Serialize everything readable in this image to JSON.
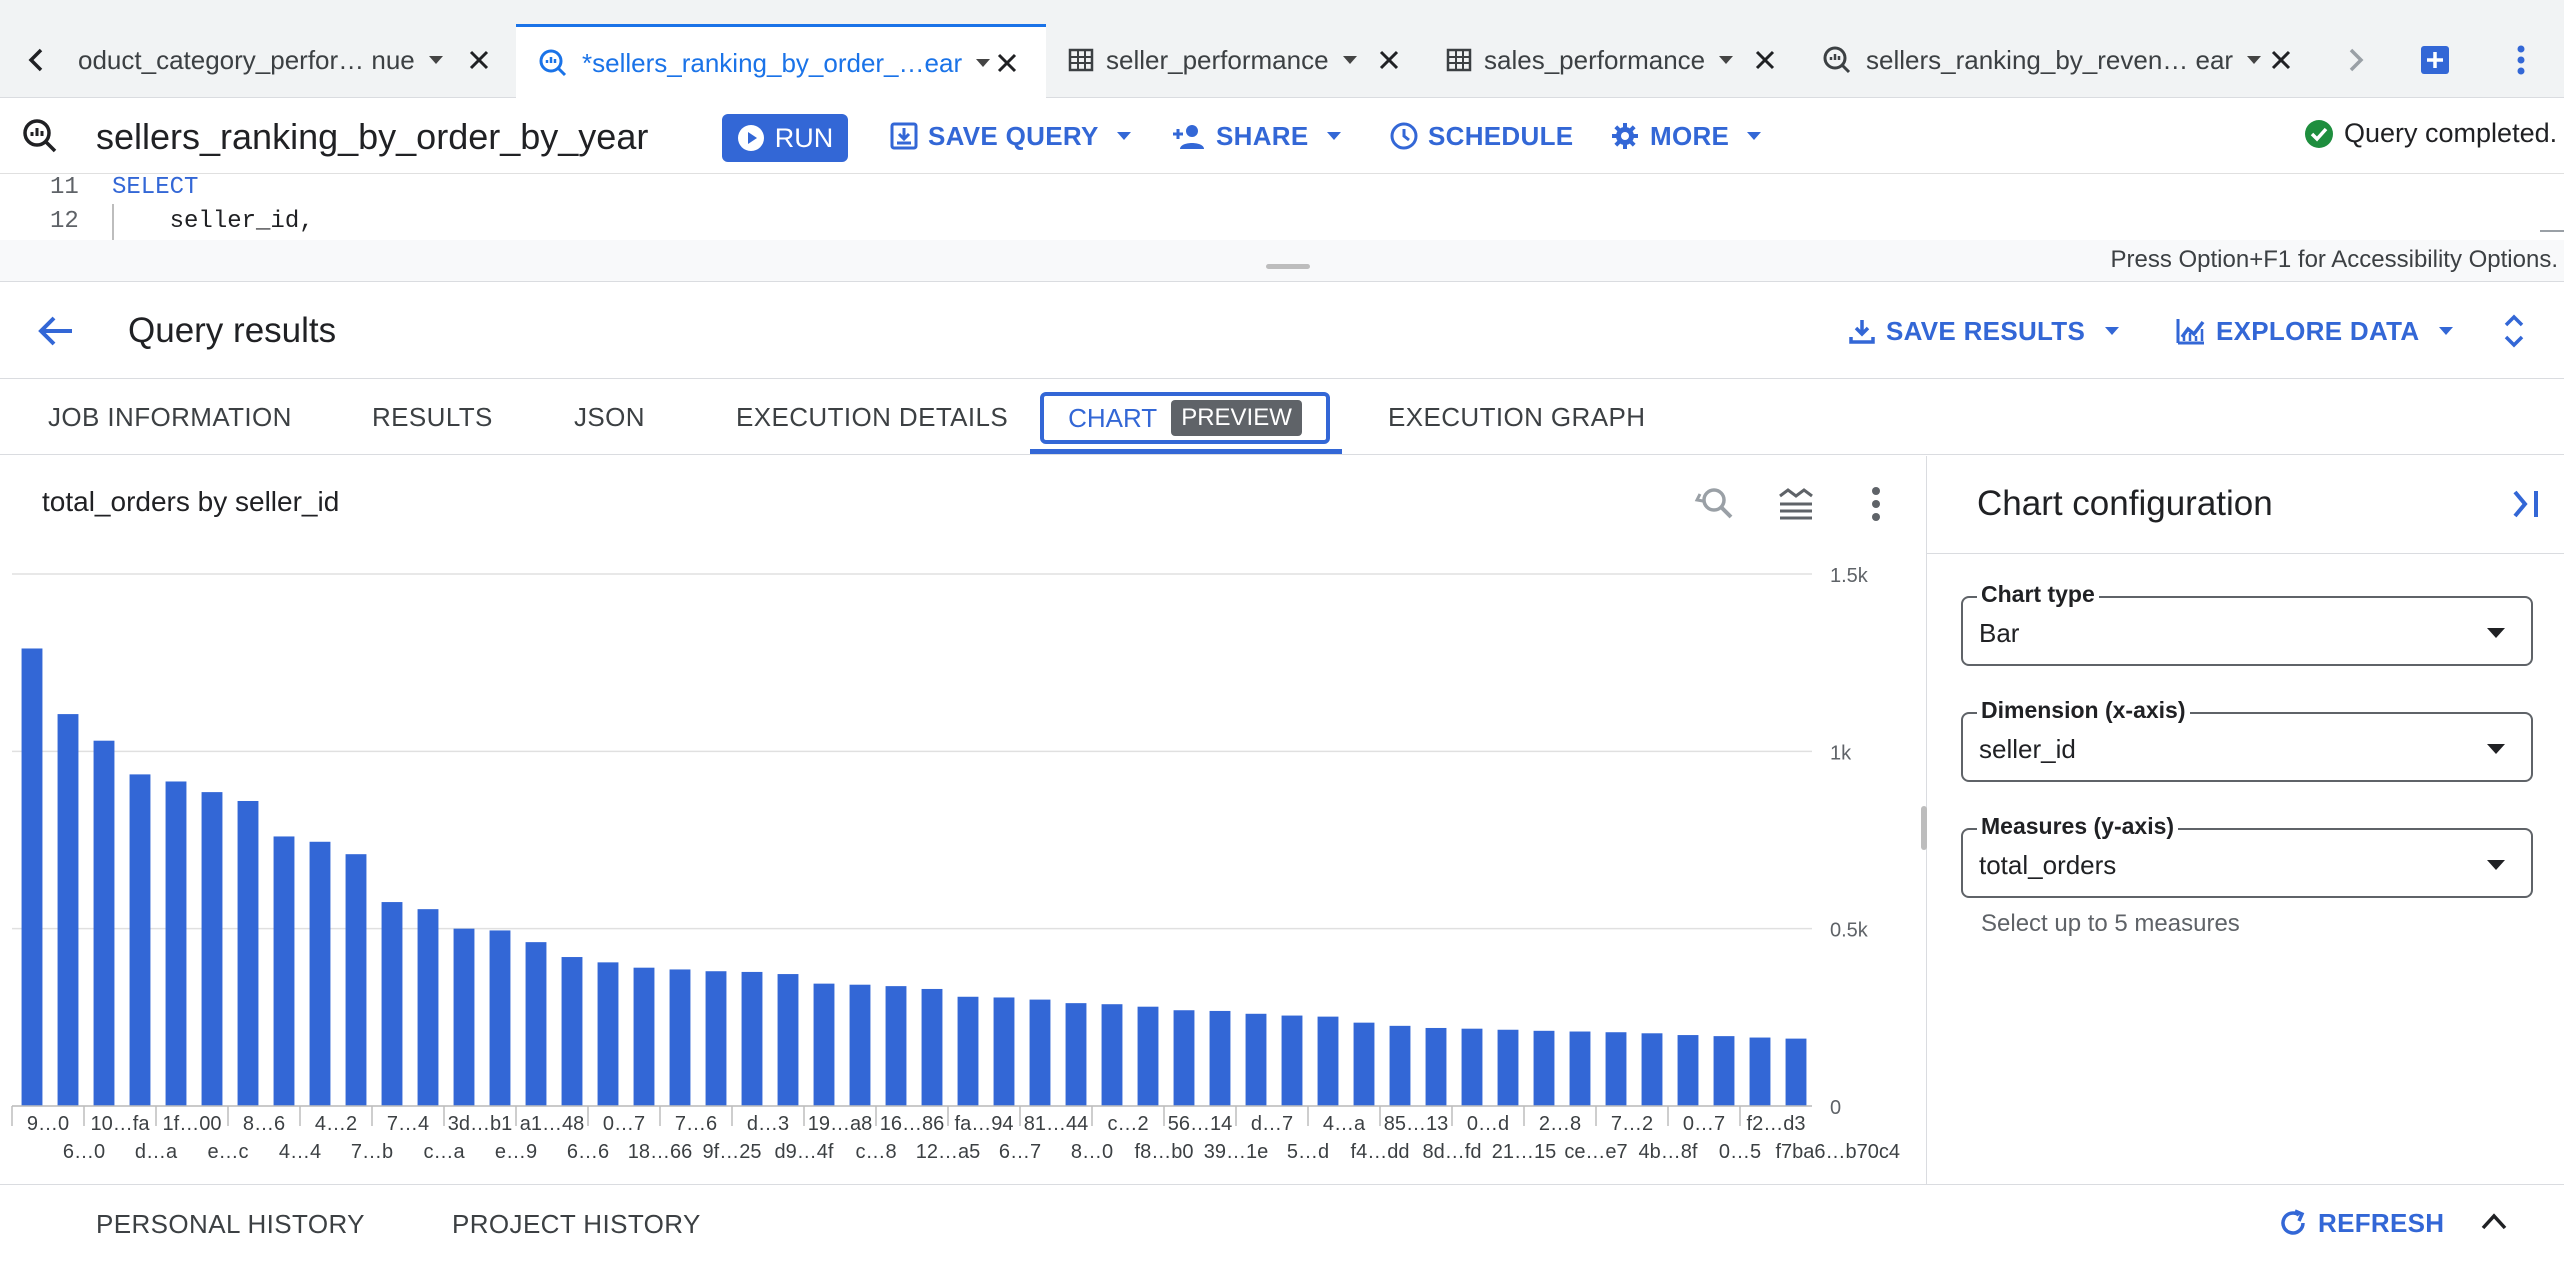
{
  "tabs": [
    {
      "label": "oduct_category_perfor…  nue",
      "active": false,
      "icon": "chevron-left-icon"
    },
    {
      "label": "*sellers_ranking_by_order_…ear",
      "active": true,
      "icon": "query-icon"
    },
    {
      "label": "seller_performance",
      "active": false,
      "icon": "table-icon"
    },
    {
      "label": "sales_performance",
      "active": false,
      "icon": "table-icon"
    },
    {
      "label": "sellers_ranking_by_reven…  ear",
      "active": false,
      "icon": "query-icon"
    }
  ],
  "query": {
    "title": "sellers_ranking_by_order_by_year",
    "run_label": "RUN",
    "save_query_label": "SAVE QUERY",
    "share_label": "SHARE",
    "schedule_label": "SCHEDULE",
    "more_label": "MORE",
    "status": "Query completed."
  },
  "editor": {
    "lines": [
      {
        "num": "11",
        "code": "SELECT"
      },
      {
        "num": "12",
        "code": "    seller_id,"
      }
    ],
    "accessibility_hint": "Press Option+F1 for Accessibility Options."
  },
  "results": {
    "title": "Query results",
    "save_results_label": "SAVE RESULTS",
    "explore_data_label": "EXPLORE DATA",
    "tabs": [
      "JOB INFORMATION",
      "RESULTS",
      "JSON",
      "EXECUTION DETAILS",
      "CHART",
      "EXECUTION GRAPH"
    ],
    "preview_badge": "PREVIEW",
    "active_tab": "CHART"
  },
  "chart_data": {
    "type": "bar",
    "title": "total_orders by seller_id",
    "xlabel": "",
    "ylabel": "",
    "ylim": [
      0,
      1500
    ],
    "y_ticks": [
      "0",
      "0.5k",
      "1k",
      "1.5k"
    ],
    "y_axis_side": "right",
    "grid": true,
    "color": "#3367d6",
    "x_tick_labels_row1": [
      "9…0",
      "10…fa",
      "1f…00",
      "8…6",
      "4…2",
      "7…4",
      "3d…b1",
      "a1…48",
      "0…7",
      "7…6",
      "d…3",
      "19…a8",
      "16…86",
      "fa…94",
      "81…44",
      "c…2",
      "56…14",
      "d…7",
      "4…a",
      "85…13",
      "0…d",
      "2…8",
      "7…2",
      "0…7",
      "f2…d3"
    ],
    "x_tick_labels_row2": [
      "6…0",
      "d…a",
      "e…c",
      "4…4",
      "7…b",
      "c…a",
      "e…9",
      "6…6",
      "18…66",
      "9f…25",
      "d9…4f",
      "c…8",
      "12…a5",
      "6…7",
      "8…0",
      "f8…b0",
      "39…1e",
      "5…d",
      "f4…dd",
      "8d…fd",
      "21…15",
      "ce…e7",
      "4b…8f",
      "0…5",
      "f7ba6…b70c4"
    ],
    "values": [
      1290,
      1105,
      1030,
      935,
      915,
      885,
      860,
      760,
      745,
      710,
      575,
      555,
      500,
      495,
      462,
      420,
      405,
      390,
      385,
      380,
      378,
      372,
      345,
      342,
      338,
      330,
      308,
      306,
      300,
      290,
      287,
      280,
      270,
      268,
      260,
      255,
      252,
      235,
      226,
      220,
      218,
      215,
      212,
      210,
      208,
      205,
      200,
      197,
      193,
      190
    ]
  },
  "chart_toolbar": {
    "zoom_icon": "zoom-reset-icon",
    "legend_icon": "legend-icon",
    "menu_icon": "more-vert-icon"
  },
  "config": {
    "title": "Chart configuration",
    "chart_type_label": "Chart type",
    "chart_type_value": "Bar",
    "dimension_label": "Dimension (x-axis)",
    "dimension_value": "seller_id",
    "measures_label": "Measures (y-axis)",
    "measures_value": "total_orders",
    "measures_hint": "Select up to 5 measures"
  },
  "history": {
    "personal_label": "PERSONAL HISTORY",
    "project_label": "PROJECT HISTORY",
    "refresh_label": "REFRESH"
  },
  "colors": {
    "accent": "#3367d6",
    "success": "#1e8e3e",
    "run_button": "#3367d6"
  }
}
